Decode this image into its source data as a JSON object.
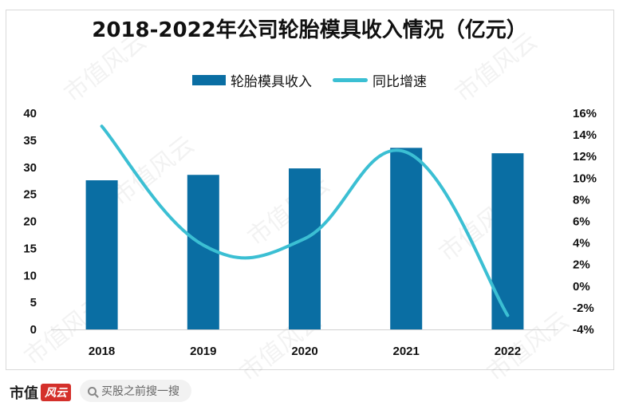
{
  "footer": {
    "brand": "市值",
    "brand_badge": "风云",
    "search_placeholder": "买股之前搜一搜"
  },
  "watermark": "市值风云",
  "colors": {
    "bar": "#0a6ea3",
    "line": "#3bbfd3"
  },
  "chart_data": {
    "type": "bar+line",
    "title": "2018-2022年公司轮胎模具收入情况（亿元）",
    "categories": [
      "2018",
      "2019",
      "2020",
      "2021",
      "2022"
    ],
    "series": [
      {
        "name": "轮胎模具收入",
        "type": "bar",
        "axis": "left",
        "values": [
          27.6,
          28.6,
          29.8,
          33.6,
          32.6
        ]
      },
      {
        "name": "同比增速",
        "type": "line",
        "axis": "right",
        "values": [
          14.8,
          3.8,
          4.4,
          12.4,
          -2.7
        ]
      }
    ],
    "y_left": {
      "min": 0,
      "max": 40,
      "ticks": [
        "0",
        "5",
        "10",
        "15",
        "20",
        "25",
        "30",
        "35",
        "40"
      ]
    },
    "y_right": {
      "min": -4,
      "max": 16,
      "ticks": [
        "-4%",
        "-2%",
        "0%",
        "2%",
        "4%",
        "6%",
        "8%",
        "10%",
        "12%",
        "14%",
        "16%"
      ]
    },
    "grid": false,
    "legend_position": "top"
  }
}
